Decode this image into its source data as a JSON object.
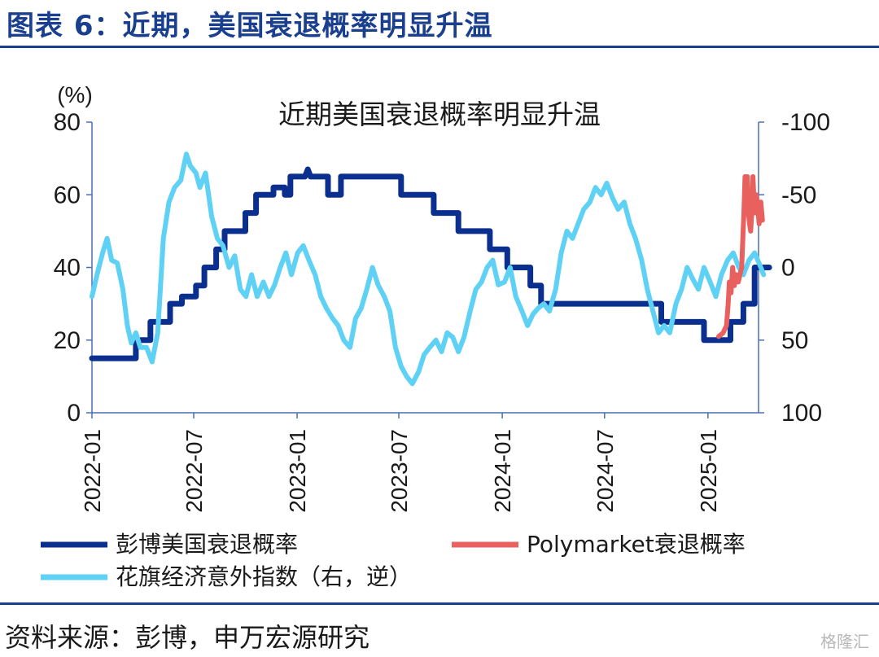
{
  "header": {
    "title": "图表 6：近期，美国衰退概率明显升温"
  },
  "footer": {
    "source": "资料来源：彭博，申万宏源研究",
    "watermark": "格隆汇"
  },
  "chart_data": {
    "type": "line",
    "title": "近期美国衰退概率明显升温",
    "y_left": {
      "unit": "(%)",
      "range": [
        0,
        80
      ],
      "ticks": [
        "0",
        "20",
        "40",
        "60",
        "80"
      ]
    },
    "y_right": {
      "range": [
        -100,
        100
      ],
      "inverted": true,
      "ticks": [
        "-100",
        "-50",
        "0",
        "50",
        "100"
      ]
    },
    "x_ticks": [
      "2022-01",
      "2022-07",
      "2023-01",
      "2023-07",
      "2024-01",
      "2024-07",
      "2025-01"
    ],
    "x_range": [
      "2022-01",
      "2025-04"
    ],
    "legend": [
      {
        "label": "彭博美国衰退概率",
        "color": "#0b2f8f"
      },
      {
        "label": "Polymarket衰退概率",
        "color": "#e8615f"
      },
      {
        "label": "花旗经济意外指数（右，逆）",
        "color": "#5fd1f5"
      }
    ],
    "series": [
      {
        "name": "彭博美国衰退概率",
        "axis": "left",
        "color": "#0b2f8f",
        "points": [
          [
            "2022-01-01",
            15
          ],
          [
            "2022-03-20",
            15
          ],
          [
            "2022-03-20",
            20
          ],
          [
            "2022-04-15",
            20
          ],
          [
            "2022-04-15",
            25
          ],
          [
            "2022-05-20",
            25
          ],
          [
            "2022-05-20",
            30
          ],
          [
            "2022-06-10",
            30
          ],
          [
            "2022-06-10",
            32
          ],
          [
            "2022-07-05",
            32
          ],
          [
            "2022-07-05",
            35
          ],
          [
            "2022-07-20",
            35
          ],
          [
            "2022-07-20",
            40
          ],
          [
            "2022-08-10",
            40
          ],
          [
            "2022-08-10",
            45
          ],
          [
            "2022-08-25",
            45
          ],
          [
            "2022-08-25",
            50
          ],
          [
            "2022-10-01",
            50
          ],
          [
            "2022-10-01",
            55
          ],
          [
            "2022-10-20",
            55
          ],
          [
            "2022-10-20",
            60
          ],
          [
            "2022-11-20",
            60
          ],
          [
            "2022-11-20",
            62
          ],
          [
            "2022-12-10",
            62
          ],
          [
            "2022-12-10",
            60
          ],
          [
            "2022-12-20",
            60
          ],
          [
            "2022-12-20",
            65
          ],
          [
            "2023-01-15",
            65
          ],
          [
            "2023-01-20",
            67
          ],
          [
            "2023-01-25",
            65
          ],
          [
            "2023-02-25",
            65
          ],
          [
            "2023-02-25",
            60
          ],
          [
            "2023-03-20",
            60
          ],
          [
            "2023-03-20",
            65
          ],
          [
            "2023-07-05",
            65
          ],
          [
            "2023-07-05",
            60
          ],
          [
            "2023-09-01",
            60
          ],
          [
            "2023-09-01",
            55
          ],
          [
            "2023-10-15",
            55
          ],
          [
            "2023-10-15",
            50
          ],
          [
            "2023-12-10",
            50
          ],
          [
            "2023-12-10",
            45
          ],
          [
            "2024-01-10",
            45
          ],
          [
            "2024-01-10",
            40
          ],
          [
            "2024-02-20",
            40
          ],
          [
            "2024-02-20",
            35
          ],
          [
            "2024-03-10",
            35
          ],
          [
            "2024-03-10",
            30
          ],
          [
            "2024-10-10",
            30
          ],
          [
            "2024-10-10",
            25
          ],
          [
            "2024-12-25",
            25
          ],
          [
            "2024-12-25",
            20
          ],
          [
            "2025-02-10",
            20
          ],
          [
            "2025-02-10",
            25
          ],
          [
            "2025-03-05",
            25
          ],
          [
            "2025-03-05",
            30
          ],
          [
            "2025-03-25",
            30
          ],
          [
            "2025-03-25",
            40
          ],
          [
            "2025-04-20",
            40
          ]
        ]
      },
      {
        "name": "Polymarket衰退概率",
        "axis": "left",
        "color": "#e8615f",
        "points": [
          [
            "2025-01-20",
            21
          ],
          [
            "2025-01-28",
            22
          ],
          [
            "2025-02-03",
            24
          ],
          [
            "2025-02-06",
            30
          ],
          [
            "2025-02-08",
            36
          ],
          [
            "2025-02-11",
            33
          ],
          [
            "2025-02-14",
            40
          ],
          [
            "2025-02-17",
            35
          ],
          [
            "2025-02-20",
            38
          ],
          [
            "2025-02-24",
            36
          ],
          [
            "2025-02-27",
            38
          ],
          [
            "2025-03-02",
            40
          ],
          [
            "2025-03-04",
            48
          ],
          [
            "2025-03-06",
            55
          ],
          [
            "2025-03-08",
            65
          ],
          [
            "2025-03-10",
            58
          ],
          [
            "2025-03-12",
            65
          ],
          [
            "2025-03-14",
            55
          ],
          [
            "2025-03-16",
            52
          ],
          [
            "2025-03-18",
            50
          ],
          [
            "2025-03-20",
            55
          ],
          [
            "2025-03-22",
            65
          ],
          [
            "2025-03-24",
            58
          ],
          [
            "2025-03-26",
            55
          ],
          [
            "2025-03-28",
            60
          ],
          [
            "2025-03-30",
            58
          ],
          [
            "2025-04-02",
            52
          ],
          [
            "2025-04-05",
            58
          ],
          [
            "2025-04-08",
            53
          ]
        ]
      },
      {
        "name": "花旗经济意外指数（右，逆）",
        "axis": "right",
        "color": "#5fd1f5",
        "points": [
          [
            "2022-01-01",
            20
          ],
          [
            "2022-01-10",
            5
          ],
          [
            "2022-01-20",
            -10
          ],
          [
            "2022-01-28",
            -20
          ],
          [
            "2022-02-05",
            -5
          ],
          [
            "2022-02-15",
            -3
          ],
          [
            "2022-02-25",
            15
          ],
          [
            "2022-03-05",
            40
          ],
          [
            "2022-03-12",
            52
          ],
          [
            "2022-03-20",
            45
          ],
          [
            "2022-03-28",
            55
          ],
          [
            "2022-04-08",
            55
          ],
          [
            "2022-04-18",
            65
          ],
          [
            "2022-04-28",
            45
          ],
          [
            "2022-05-08",
            -20
          ],
          [
            "2022-05-18",
            -45
          ],
          [
            "2022-05-28",
            -55
          ],
          [
            "2022-06-08",
            -60
          ],
          [
            "2022-06-18",
            -78
          ],
          [
            "2022-06-25",
            -70
          ],
          [
            "2022-07-05",
            -65
          ],
          [
            "2022-07-12",
            -55
          ],
          [
            "2022-07-22",
            -65
          ],
          [
            "2022-08-02",
            -35
          ],
          [
            "2022-08-12",
            -20
          ],
          [
            "2022-08-22",
            -15
          ],
          [
            "2022-09-02",
            0
          ],
          [
            "2022-09-12",
            -8
          ],
          [
            "2022-09-22",
            15
          ],
          [
            "2022-10-02",
            20
          ],
          [
            "2022-10-12",
            5
          ],
          [
            "2022-10-22",
            20
          ],
          [
            "2022-11-02",
            10
          ],
          [
            "2022-11-12",
            20
          ],
          [
            "2022-11-22",
            12
          ],
          [
            "2022-12-02",
            0
          ],
          [
            "2022-12-12",
            -10
          ],
          [
            "2022-12-22",
            5
          ],
          [
            "2023-01-02",
            -10
          ],
          [
            "2023-01-12",
            -15
          ],
          [
            "2023-01-22",
            -5
          ],
          [
            "2023-02-02",
            5
          ],
          [
            "2023-02-12",
            20
          ],
          [
            "2023-02-22",
            28
          ],
          [
            "2023-03-05",
            35
          ],
          [
            "2023-03-15",
            40
          ],
          [
            "2023-03-25",
            50
          ],
          [
            "2023-04-05",
            55
          ],
          [
            "2023-04-15",
            35
          ],
          [
            "2023-04-25",
            28
          ],
          [
            "2023-05-05",
            15
          ],
          [
            "2023-05-15",
            0
          ],
          [
            "2023-05-25",
            12
          ],
          [
            "2023-06-05",
            20
          ],
          [
            "2023-06-15",
            30
          ],
          [
            "2023-06-25",
            55
          ],
          [
            "2023-07-05",
            68
          ],
          [
            "2023-07-15",
            75
          ],
          [
            "2023-07-25",
            80
          ],
          [
            "2023-08-05",
            72
          ],
          [
            "2023-08-15",
            60
          ],
          [
            "2023-08-25",
            55
          ],
          [
            "2023-09-05",
            50
          ],
          [
            "2023-09-15",
            58
          ],
          [
            "2023-09-25",
            45
          ],
          [
            "2023-10-05",
            48
          ],
          [
            "2023-10-15",
            58
          ],
          [
            "2023-10-25",
            48
          ],
          [
            "2023-11-05",
            30
          ],
          [
            "2023-11-15",
            15
          ],
          [
            "2023-11-25",
            10
          ],
          [
            "2023-12-05",
            0
          ],
          [
            "2023-12-15",
            -5
          ],
          [
            "2023-12-25",
            12
          ],
          [
            "2024-01-05",
            10
          ],
          [
            "2024-01-15",
            0
          ],
          [
            "2024-01-25",
            20
          ],
          [
            "2024-02-05",
            30
          ],
          [
            "2024-02-15",
            40
          ],
          [
            "2024-02-25",
            32
          ],
          [
            "2024-03-05",
            28
          ],
          [
            "2024-03-15",
            25
          ],
          [
            "2024-03-25",
            30
          ],
          [
            "2024-04-05",
            15
          ],
          [
            "2024-04-15",
            -10
          ],
          [
            "2024-04-25",
            -25
          ],
          [
            "2024-05-05",
            -20
          ],
          [
            "2024-05-15",
            -30
          ],
          [
            "2024-05-25",
            -40
          ],
          [
            "2024-06-05",
            -45
          ],
          [
            "2024-06-15",
            -55
          ],
          [
            "2024-06-25",
            -50
          ],
          [
            "2024-07-05",
            -58
          ],
          [
            "2024-07-15",
            -48
          ],
          [
            "2024-07-25",
            -40
          ],
          [
            "2024-08-05",
            -45
          ],
          [
            "2024-08-15",
            -30
          ],
          [
            "2024-08-25",
            -20
          ],
          [
            "2024-09-05",
            -5
          ],
          [
            "2024-09-15",
            15
          ],
          [
            "2024-09-25",
            30
          ],
          [
            "2024-10-05",
            45
          ],
          [
            "2024-10-15",
            40
          ],
          [
            "2024-10-25",
            45
          ],
          [
            "2024-11-05",
            25
          ],
          [
            "2024-11-15",
            15
          ],
          [
            "2024-11-25",
            0
          ],
          [
            "2024-12-05",
            8
          ],
          [
            "2024-12-15",
            15
          ],
          [
            "2024-12-25",
            0
          ],
          [
            "2025-01-05",
            10
          ],
          [
            "2025-01-15",
            20
          ],
          [
            "2025-01-25",
            5
          ],
          [
            "2025-02-05",
            -5
          ],
          [
            "2025-02-15",
            -10
          ],
          [
            "2025-02-25",
            0
          ],
          [
            "2025-03-05",
            5
          ],
          [
            "2025-03-15",
            -5
          ],
          [
            "2025-03-25",
            -10
          ],
          [
            "2025-04-05",
            0
          ],
          [
            "2025-04-10",
            5
          ]
        ]
      }
    ]
  }
}
